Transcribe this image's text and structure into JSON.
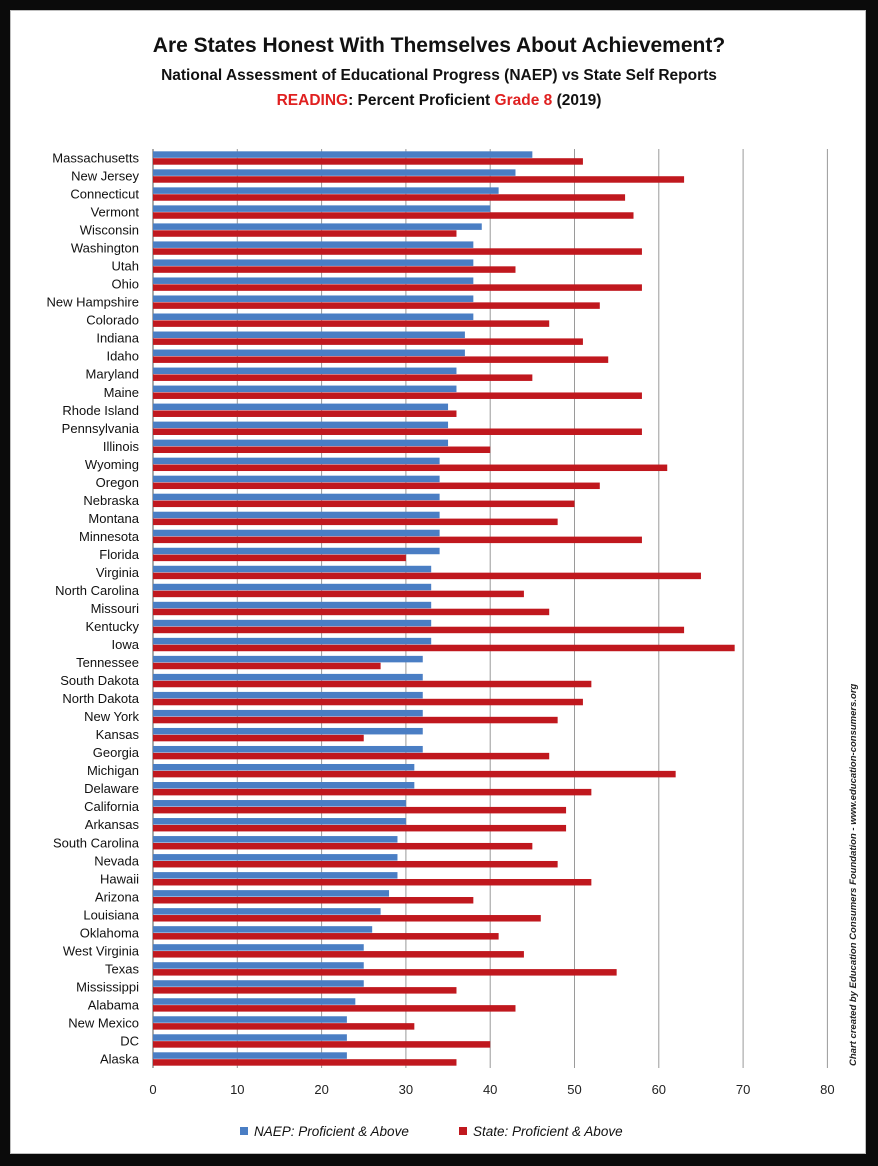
{
  "chart_data": {
    "type": "bar",
    "orientation": "horizontal",
    "title": "Are States Honest With Themselves About Achievement?",
    "subtitle": "National Assessment of Educational Progress (NAEP) vs State Self Reports",
    "subtitle2": {
      "reading": "READING",
      "middle": ": Percent Proficient ",
      "grade": "Grade 8",
      "year": " (2019)"
    },
    "credit": "Chart created by Education Consumers Foundation - www.education-consumers.org",
    "xlim": [
      0,
      80
    ],
    "xticks": [
      0,
      10,
      20,
      30,
      40,
      50,
      60,
      70,
      80
    ],
    "grid": true,
    "legend_position": "bottom",
    "categories": [
      "Massachusetts",
      "New Jersey",
      "Connecticut",
      "Vermont",
      "Wisconsin",
      "Washington",
      "Utah",
      "Ohio",
      "New Hampshire",
      "Colorado",
      "Indiana",
      "Idaho",
      "Maryland",
      "Maine",
      "Rhode Island",
      "Pennsylvania",
      "Illinois",
      "Wyoming",
      "Oregon",
      "Nebraska",
      "Montana",
      "Minnesota",
      "Florida",
      "Virginia",
      "North Carolina",
      "Missouri",
      "Kentucky",
      "Iowa",
      "Tennessee",
      "South Dakota",
      "North Dakota",
      "New York",
      "Kansas",
      "Georgia",
      "Michigan",
      "Delaware",
      "California",
      "Arkansas",
      "South Carolina",
      "Nevada",
      "Hawaii",
      "Arizona",
      "Louisiana",
      "Oklahoma",
      "West Virginia",
      "Texas",
      "Mississippi",
      "Alabama",
      "New Mexico",
      "DC",
      "Alaska"
    ],
    "series": [
      {
        "name": "NAEP: Proficient & Above",
        "color": "#4a7ec4",
        "values": [
          45,
          43,
          41,
          40,
          39,
          38,
          38,
          38,
          38,
          38,
          37,
          37,
          36,
          36,
          35,
          35,
          35,
          34,
          34,
          34,
          34,
          34,
          34,
          33,
          33,
          33,
          33,
          33,
          32,
          32,
          32,
          32,
          32,
          32,
          31,
          31,
          30,
          30,
          29,
          29,
          29,
          28,
          27,
          26,
          25,
          25,
          25,
          24,
          23,
          23,
          23
        ]
      },
      {
        "name": "State: Proficient & Above",
        "color": "#c0181e",
        "values": [
          51,
          63,
          56,
          57,
          36,
          58,
          43,
          58,
          53,
          47,
          51,
          54,
          45,
          58,
          36,
          58,
          40,
          61,
          53,
          50,
          48,
          58,
          30,
          65,
          44,
          47,
          63,
          69,
          27,
          52,
          51,
          48,
          25,
          47,
          62,
          52,
          49,
          49,
          45,
          48,
          52,
          38,
          46,
          41,
          44,
          55,
          36,
          43,
          31,
          40,
          36
        ]
      }
    ]
  }
}
